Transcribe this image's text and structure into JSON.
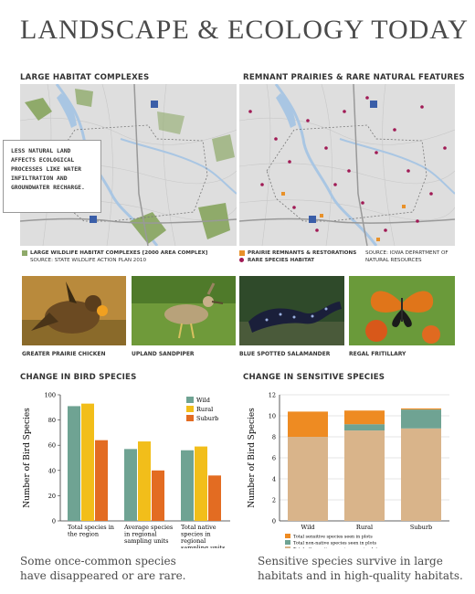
{
  "page": {
    "title": "LANDSCAPE & ECOLOGY TODAY"
  },
  "left_map": {
    "heading": "LARGE HABITAT COMPLEXES",
    "callout": "LESS NATURAL LAND AFFECTS ECOLOGICAL PROCESSES LIKE WATER INFILTRATION AND GROUNDWATER RECHARGE.",
    "legend_item": "LARGE WILDLIFE HABITAT COMPLEXES [2000 AREA COMPLEX]",
    "source": "SOURCE: STATE WILDLIFE ACTION PLAN 2010",
    "colors": {
      "habitat": "#8faa6a",
      "water": "#a9c6e3",
      "land": "#dedede"
    }
  },
  "right_map": {
    "heading": "REMNANT PRAIRIES & RARE NATURAL FEATURES",
    "legend_item_1": "PRAIRIE REMNANTS & RESTORATIONS",
    "legend_item_2": "RARE SPECIES HABITAT",
    "source_1": "SOURCE: IOWA DEPARTMENT OF",
    "source_2": "NATURAL RESOURCES",
    "colors": {
      "prairie": "#e8912a",
      "rare": "#a01a55"
    }
  },
  "photos": [
    {
      "caption": "GREATER PRAIRIE CHICKEN",
      "icon": "prairie-chicken-photo"
    },
    {
      "caption": "UPLAND SANDPIPER",
      "icon": "sandpiper-photo"
    },
    {
      "caption": "BLUE SPOTTED SALAMANDER",
      "icon": "salamander-photo"
    },
    {
      "caption": "REGAL FRITILLARY",
      "icon": "butterfly-photo"
    }
  ],
  "bird_chart_heading": "CHANGE IN BIRD SPECIES",
  "sensitive_chart_heading": "CHANGE IN SENSITIVE SPECIES",
  "bird_caption_1": "Some once-common species",
  "bird_caption_2": "have disappeared or are rare.",
  "sensitive_caption_1": "Sensitive species survive in large",
  "sensitive_caption_2": "habitats and in high-quality habitats.",
  "chart_data": [
    {
      "type": "bar",
      "title": "CHANGE IN BIRD SPECIES",
      "ylabel": "Number of Bird Species",
      "ylim": [
        0,
        100
      ],
      "yticks": [
        0,
        20,
        40,
        60,
        80,
        100
      ],
      "categories": [
        [
          "Total species in",
          "the region"
        ],
        [
          "Average species",
          "in regional",
          "sampling units"
        ],
        [
          "Total native",
          "species in",
          "regional",
          "sampling units"
        ]
      ],
      "series": [
        {
          "name": "Wild",
          "color": "#6fa393",
          "values": [
            91,
            57,
            56
          ]
        },
        {
          "name": "Rural",
          "color": "#f2be1a",
          "values": [
            93,
            63,
            59
          ]
        },
        {
          "name": "Suburb",
          "color": "#e36c22",
          "values": [
            64,
            40,
            36
          ]
        }
      ],
      "legend": "top-right",
      "grid": false
    },
    {
      "type": "bar",
      "stacked": true,
      "title": "CHANGE IN SENSITIVE SPECIES",
      "ylabel": "Number of Bird Species",
      "ylim": [
        0,
        12
      ],
      "yticks": [
        0,
        2,
        4,
        6,
        8,
        10,
        12
      ],
      "categories": [
        "Wild",
        "Rural",
        "Suburb"
      ],
      "series": [
        {
          "name": "Total other native species seen in plots",
          "color": "#d9b48a",
          "values": [
            8.0,
            8.6,
            8.8
          ]
        },
        {
          "name": "Total non-native species seen in plots",
          "color": "#6fa393",
          "values": [
            0,
            0.6,
            1.8
          ]
        },
        {
          "name": "Total sensitive species seen in plots",
          "color": "#ee8b22",
          "values": [
            2.4,
            1.3,
            0.1
          ]
        }
      ],
      "legend": "bottom",
      "grid": true
    }
  ]
}
